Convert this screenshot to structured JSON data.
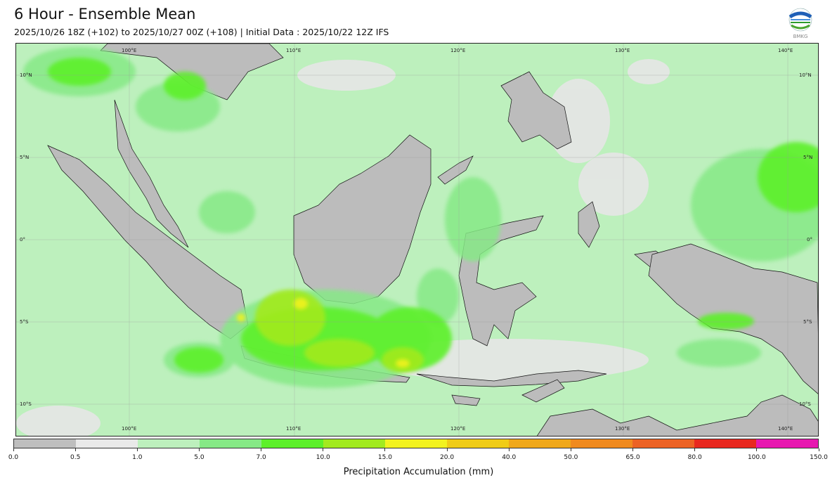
{
  "header": {
    "title": "6 Hour - Ensemble Mean",
    "subtitle": "2025/10/26 18Z (+102) to 2025/10/27 00Z (+108) | Initial Data : 2025/10/22 12Z IFS",
    "logo_text": "BMKG"
  },
  "map": {
    "lon_labels": [
      "100°E",
      "110°E",
      "120°E",
      "130°E",
      "140°E"
    ],
    "lat_labels": [
      "10°N",
      "5°N",
      "0°",
      "5°S",
      "10°S"
    ]
  },
  "colorbar": {
    "label": "Precipitation Accumulation (mm)",
    "ticks": [
      "0.0",
      "0.5",
      "1.0",
      "5.0",
      "7.0",
      "10.0",
      "15.0",
      "20.0",
      "40.0",
      "50.0",
      "65.0",
      "80.0",
      "100.0",
      "150.0"
    ],
    "colors": [
      "#bebebe",
      "#e9e9e9",
      "#bdf0bd",
      "#86e986",
      "#5df02a",
      "#a2ea1f",
      "#f2f21f",
      "#f0cc17",
      "#f0a81a",
      "#f08a1e",
      "#ec6224",
      "#e8281f",
      "#e718b0"
    ]
  }
}
